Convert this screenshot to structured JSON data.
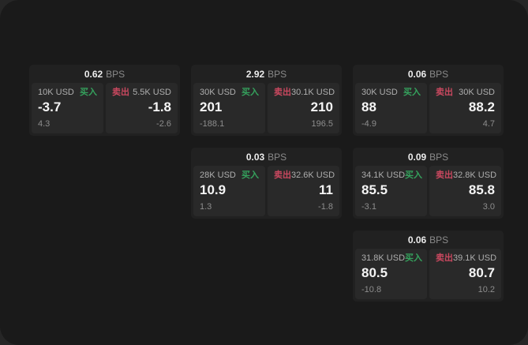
{
  "labels": {
    "unit": "BPS",
    "buy": "买入",
    "sell": "卖出"
  },
  "colors": {
    "buy_green": "#35a25d",
    "sell_red": "#c9485f",
    "panel_bg": "#1a1a1a",
    "card_bg": "#212121",
    "tile_bg": "#292929"
  },
  "cards": [
    {
      "spread_bps": "0.62",
      "buy": {
        "size": "10K USD",
        "price": "-3.7",
        "sub": "4.3"
      },
      "sell": {
        "size": "5.5K USD",
        "price": "-1.8",
        "sub": "-2.6"
      }
    },
    {
      "spread_bps": "2.92",
      "buy": {
        "size": "30K USD",
        "price": "201",
        "sub": "-188.1"
      },
      "sell": {
        "size": "30.1K USD",
        "price": "210",
        "sub": "196.5"
      }
    },
    {
      "spread_bps": "0.06",
      "buy": {
        "size": "30K USD",
        "price": "88",
        "sub": "-4.9"
      },
      "sell": {
        "size": "30K USD",
        "price": "88.2",
        "sub": "4.7"
      }
    },
    {
      "spread_bps": "0.03",
      "buy": {
        "size": "28K USD",
        "price": "10.9",
        "sub": "1.3"
      },
      "sell": {
        "size": "32.6K USD",
        "price": "11",
        "sub": "-1.8"
      }
    },
    {
      "spread_bps": "0.09",
      "buy": {
        "size": "34.1K USD",
        "price": "85.5",
        "sub": "-3.1"
      },
      "sell": {
        "size": "32.8K USD",
        "price": "85.8",
        "sub": "3.0"
      }
    },
    {
      "spread_bps": "0.06",
      "buy": {
        "size": "31.8K USD",
        "price": "80.5",
        "sub": "-10.8"
      },
      "sell": {
        "size": "39.1K USD",
        "price": "80.7",
        "sub": "10.2"
      }
    }
  ]
}
